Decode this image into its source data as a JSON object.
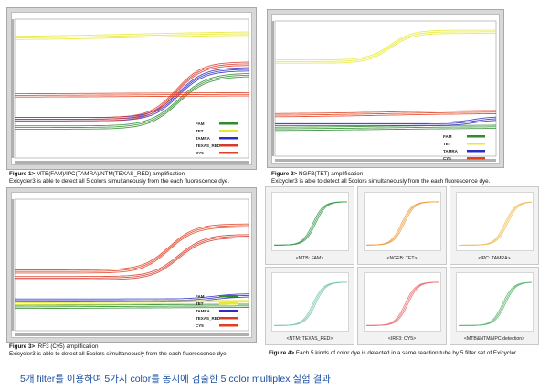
{
  "figure1": {
    "caption_bold": "Figure 1>",
    "caption_text": " MTB(FAM)/IPC(TAMRA)/NTM(TEXAS_RED) amplification",
    "caption_sub": "Exicycler3 is able to detect all 5 colors simultaneously from the each fluorescence dye."
  },
  "figure2": {
    "caption_bold": "Figure 2>",
    "caption_text": " NGFB(TET) amplification",
    "caption_sub": "Exicycler3 is able to detect all 5colors simultaneously from the each fluorescence dye."
  },
  "figure3": {
    "caption_bold": "Figure 3>",
    "caption_text": " IRF3 (Cy5) amplification",
    "caption_sub": "Exicycler3 is able to detect all 5colors simultaneously from the each fluorescence dye."
  },
  "figure4": {
    "caption_bold": "Figure 4>",
    "caption_text": " Each 5 kinds of color dye is detected in a same reaction tube by 5 filter set of Exicycler."
  },
  "footer_text": "5개 filter를 이용하여 5가지 color를 동시에 검출한 5 color multiplex 실험 결과",
  "colors": {
    "FAM": "#2e8b2e",
    "TET": "#e8e830",
    "TAMRA": "#2c2cc8",
    "TEXAS_RED": "#d83a2a",
    "CY5": "#e04020"
  },
  "chart_data": [
    {
      "type": "line",
      "title": "",
      "legend": [
        "FAM",
        "TET",
        "TAMRA",
        "TEXAS_RED",
        "CY5"
      ],
      "legend_position": "right",
      "series": [
        {
          "name": "FAM",
          "baseline": 0.22,
          "plateau": 0.6,
          "midpoint": 0.7,
          "steep": 16
        },
        {
          "name": "TET",
          "baseline": 0.86,
          "plateau": 0.9,
          "midpoint": 0.5,
          "steep": 4
        },
        {
          "name": "TAMRA",
          "baseline": 0.28,
          "plateau": 0.64,
          "midpoint": 0.7,
          "steep": 18
        },
        {
          "name": "TEXAS_RED",
          "baseline": 0.28,
          "plateau": 0.68,
          "midpoint": 0.69,
          "steep": 18
        },
        {
          "name": "CY5",
          "baseline": 0.45,
          "plateau": 0.46,
          "midpoint": 0.5,
          "steep": 4
        }
      ]
    },
    {
      "type": "line",
      "title": "",
      "legend": [
        "FAM",
        "TET",
        "TAMRA",
        "CY5"
      ],
      "legend_position": "right",
      "series": [
        {
          "name": "TET",
          "baseline": 0.7,
          "plateau": 0.92,
          "midpoint": 0.52,
          "steep": 20
        },
        {
          "name": "FAM",
          "baseline": 0.2,
          "plateau": 0.22,
          "midpoint": 0.5,
          "steep": 4
        },
        {
          "name": "TAMRA",
          "baseline": 0.24,
          "plateau": 0.28,
          "midpoint": 0.9,
          "steep": 25
        },
        {
          "name": "CY5",
          "baseline": 0.3,
          "plateau": 0.33,
          "midpoint": 0.5,
          "steep": 4
        }
      ]
    },
    {
      "type": "line",
      "title": "",
      "legend": [
        "FAM",
        "TET",
        "TAMRA",
        "TEXAS_RED",
        "CY5"
      ],
      "legend_position": "right",
      "series": [
        {
          "name": "CY5",
          "baseline": 0.45,
          "plateau": 0.8,
          "midpoint": 0.66,
          "steep": 18
        },
        {
          "name": "TEXAS_RED",
          "baseline": 0.4,
          "plateau": 0.72,
          "midpoint": 0.7,
          "steep": 18
        },
        {
          "name": "TAMRA",
          "baseline": 0.23,
          "plateau": 0.27,
          "midpoint": 0.85,
          "steep": 20
        },
        {
          "name": "FAM",
          "baseline": 0.18,
          "plateau": 0.19,
          "midpoint": 0.5,
          "steep": 4
        },
        {
          "name": "TET",
          "baseline": 0.21,
          "plateau": 0.22,
          "midpoint": 0.5,
          "steep": 4
        }
      ]
    },
    {
      "type": "line",
      "subplots": [
        {
          "label": "<MTB: FAM>",
          "color": "#3c9a4a",
          "midpoint": 0.55
        },
        {
          "label": "<NGFB: TET>",
          "color": "#f0a040",
          "midpoint": 0.5
        },
        {
          "label": "<IPC: TAMRA>",
          "color": "#f0c060",
          "midpoint": 0.65
        },
        {
          "label": "<NTM: TEXAS_RED>",
          "color": "#7cc8b0",
          "midpoint": 0.55
        },
        {
          "label": "<IRF3: CY5>",
          "color": "#e87070",
          "midpoint": 0.55
        },
        {
          "label": "<MTB&NTM&IPC detection>",
          "color": "#5cb870",
          "midpoint": 0.62
        }
      ]
    }
  ]
}
